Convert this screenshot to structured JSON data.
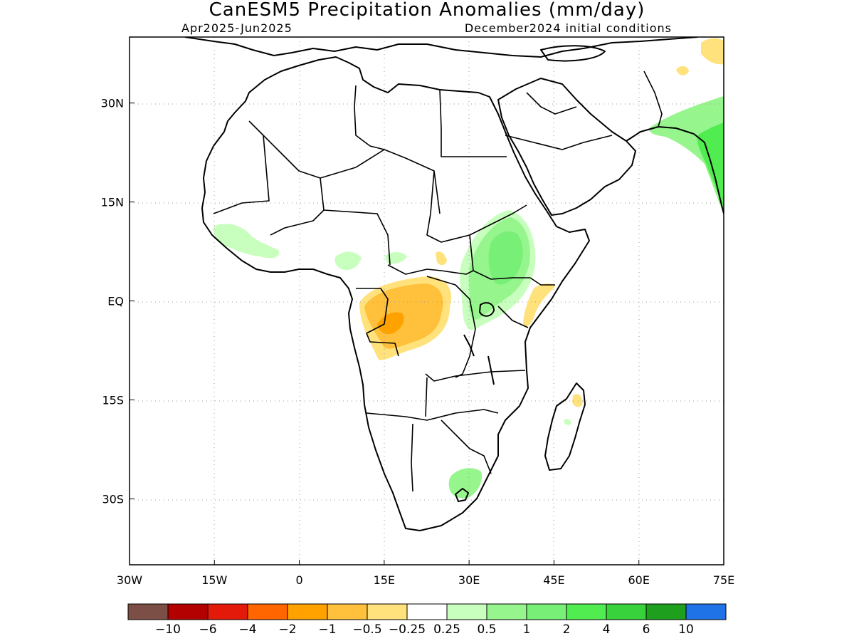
{
  "header": {
    "title": "CanESM5 Precipitation Anomalies (mm/day)",
    "period": "Apr2025-Jun2025",
    "init": "December2024 initial conditions"
  },
  "axes": {
    "lat_ticks": [
      {
        "lat": 30,
        "label": "30N"
      },
      {
        "lat": 15,
        "label": "15N"
      },
      {
        "lat": 0,
        "label": "EQ"
      },
      {
        "lat": -15,
        "label": "15S"
      },
      {
        "lat": -30,
        "label": "30S"
      }
    ],
    "lon_ticks": [
      {
        "lon": -30,
        "label": "30W"
      },
      {
        "lon": -15,
        "label": "15W"
      },
      {
        "lon": 0,
        "label": "0"
      },
      {
        "lon": 15,
        "label": "15E"
      },
      {
        "lon": 30,
        "label": "30E"
      },
      {
        "lon": 45,
        "label": "45E"
      },
      {
        "lon": 60,
        "label": "60E"
      },
      {
        "lon": 75,
        "label": "75E"
      }
    ],
    "lon_range": [
      -30,
      75
    ],
    "lat_range": [
      -40,
      40
    ],
    "grid": true
  },
  "colorbar": {
    "colors": [
      "#7b4f45",
      "#b30000",
      "#e31a0a",
      "#ff6600",
      "#ffa200",
      "#ffc03c",
      "#ffe27c",
      "#ffffff",
      "#c8ffbe",
      "#96f58c",
      "#78f078",
      "#50ec50",
      "#37d23c",
      "#1ea01e",
      "#2073e6"
    ],
    "labels": [
      "-10",
      "-6",
      "-4",
      "-2",
      "-1",
      "-0.5",
      "-0.25",
      "0.25",
      "0.5",
      "1",
      "2",
      "4",
      "6",
      "10"
    ]
  },
  "anomaly_regions": [
    {
      "label": "Central Africa (Congo/Angola)",
      "color": "#ffc03c",
      "category": "-1 to -0.5"
    },
    {
      "label": "Central Africa core",
      "color": "#ffa200",
      "category": "-2 to -1"
    },
    {
      "label": "Central Africa margin",
      "color": "#ffe27c",
      "category": "-0.5 to -0.25"
    },
    {
      "label": "Ethiopia / South Sudan",
      "color": "#78f078",
      "category": "1 to 2"
    },
    {
      "label": "East African Lakes",
      "color": "#96f58c",
      "category": "0.5 to 1"
    },
    {
      "label": "Kenya coast",
      "color": "#ffe27c",
      "category": "-0.5 to -0.25"
    },
    {
      "label": "West Africa coast",
      "color": "#c8ffbe",
      "category": "0.25 to 0.5"
    },
    {
      "label": "South Africa east",
      "color": "#96f58c",
      "category": "0.5 to 1"
    },
    {
      "label": "India west coast",
      "color": "#50ec50",
      "category": "2 to 4"
    },
    {
      "label": "Pakistan / Afghanistan",
      "color": "#ffe27c",
      "category": "-0.5 to -0.25"
    }
  ]
}
